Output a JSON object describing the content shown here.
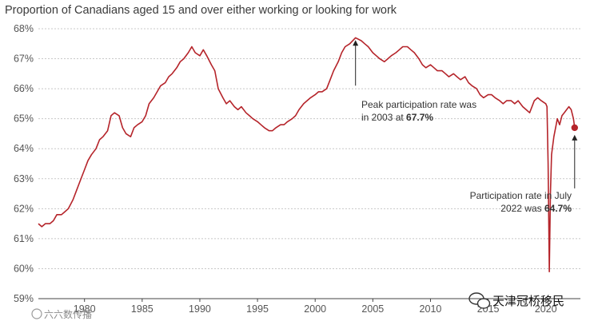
{
  "chart_data": {
    "type": "line",
    "title": "Proportion of Canadians aged 15 and over either working or looking for work",
    "ylim": [
      59,
      68
    ],
    "xlim": [
      1976,
      2023
    ],
    "y_ticks": [
      "59%",
      "60%",
      "61%",
      "62%",
      "63%",
      "64%",
      "65%",
      "66%",
      "67%",
      "68%"
    ],
    "y_tick_values": [
      59,
      60,
      61,
      62,
      63,
      64,
      65,
      66,
      67,
      68
    ],
    "x_ticks": [
      "1980",
      "1985",
      "1990",
      "1995",
      "2000",
      "2005",
      "2010",
      "2015",
      "2020"
    ],
    "x_tick_values": [
      1980,
      1985,
      1990,
      1995,
      2000,
      2005,
      2010,
      2015,
      2020
    ],
    "grid": "horizontal dotted",
    "line_color": "#b5242a",
    "series": [
      {
        "values": [
          [
            1976.0,
            61.5
          ],
          [
            1976.3,
            61.4
          ],
          [
            1976.6,
            61.5
          ],
          [
            1977.0,
            61.5
          ],
          [
            1977.3,
            61.6
          ],
          [
            1977.6,
            61.8
          ],
          [
            1978.0,
            61.8
          ],
          [
            1978.3,
            61.9
          ],
          [
            1978.6,
            62.0
          ],
          [
            1979.0,
            62.3
          ],
          [
            1979.3,
            62.6
          ],
          [
            1979.6,
            62.9
          ],
          [
            1980.0,
            63.3
          ],
          [
            1980.3,
            63.6
          ],
          [
            1980.6,
            63.8
          ],
          [
            1981.0,
            64.0
          ],
          [
            1981.3,
            64.3
          ],
          [
            1981.6,
            64.4
          ],
          [
            1982.0,
            64.6
          ],
          [
            1982.3,
            65.1
          ],
          [
            1982.6,
            65.2
          ],
          [
            1983.0,
            65.1
          ],
          [
            1983.3,
            64.7
          ],
          [
            1983.6,
            64.5
          ],
          [
            1984.0,
            64.4
          ],
          [
            1984.3,
            64.7
          ],
          [
            1984.6,
            64.8
          ],
          [
            1985.0,
            64.9
          ],
          [
            1985.3,
            65.1
          ],
          [
            1985.6,
            65.5
          ],
          [
            1986.0,
            65.7
          ],
          [
            1986.3,
            65.9
          ],
          [
            1986.6,
            66.1
          ],
          [
            1987.0,
            66.2
          ],
          [
            1987.3,
            66.4
          ],
          [
            1987.6,
            66.5
          ],
          [
            1988.0,
            66.7
          ],
          [
            1988.3,
            66.9
          ],
          [
            1988.6,
            67.0
          ],
          [
            1989.0,
            67.2
          ],
          [
            1989.3,
            67.4
          ],
          [
            1989.6,
            67.2
          ],
          [
            1990.0,
            67.1
          ],
          [
            1990.3,
            67.3
          ],
          [
            1990.6,
            67.1
          ],
          [
            1991.0,
            66.8
          ],
          [
            1991.3,
            66.6
          ],
          [
            1991.6,
            66.0
          ],
          [
            1992.0,
            65.7
          ],
          [
            1992.3,
            65.5
          ],
          [
            1992.6,
            65.6
          ],
          [
            1993.0,
            65.4
          ],
          [
            1993.3,
            65.3
          ],
          [
            1993.6,
            65.4
          ],
          [
            1994.0,
            65.2
          ],
          [
            1994.3,
            65.1
          ],
          [
            1994.6,
            65.0
          ],
          [
            1995.0,
            64.9
          ],
          [
            1995.3,
            64.8
          ],
          [
            1995.6,
            64.7
          ],
          [
            1996.0,
            64.6
          ],
          [
            1996.3,
            64.6
          ],
          [
            1996.6,
            64.7
          ],
          [
            1997.0,
            64.8
          ],
          [
            1997.3,
            64.8
          ],
          [
            1997.6,
            64.9
          ],
          [
            1998.0,
            65.0
          ],
          [
            1998.3,
            65.1
          ],
          [
            1998.6,
            65.3
          ],
          [
            1999.0,
            65.5
          ],
          [
            1999.3,
            65.6
          ],
          [
            1999.6,
            65.7
          ],
          [
            2000.0,
            65.8
          ],
          [
            2000.3,
            65.9
          ],
          [
            2000.6,
            65.9
          ],
          [
            2001.0,
            66.0
          ],
          [
            2001.3,
            66.3
          ],
          [
            2001.6,
            66.6
          ],
          [
            2002.0,
            66.9
          ],
          [
            2002.3,
            67.2
          ],
          [
            2002.6,
            67.4
          ],
          [
            2003.0,
            67.5
          ],
          [
            2003.5,
            67.7
          ],
          [
            2004.0,
            67.6
          ],
          [
            2004.3,
            67.5
          ],
          [
            2004.6,
            67.4
          ],
          [
            2005.0,
            67.2
          ],
          [
            2005.3,
            67.1
          ],
          [
            2005.6,
            67.0
          ],
          [
            2006.0,
            66.9
          ],
          [
            2006.3,
            67.0
          ],
          [
            2006.6,
            67.1
          ],
          [
            2007.0,
            67.2
          ],
          [
            2007.3,
            67.3
          ],
          [
            2007.6,
            67.4
          ],
          [
            2008.0,
            67.4
          ],
          [
            2008.3,
            67.3
          ],
          [
            2008.6,
            67.2
          ],
          [
            2009.0,
            67.0
          ],
          [
            2009.3,
            66.8
          ],
          [
            2009.6,
            66.7
          ],
          [
            2010.0,
            66.8
          ],
          [
            2010.3,
            66.7
          ],
          [
            2010.6,
            66.6
          ],
          [
            2011.0,
            66.6
          ],
          [
            2011.3,
            66.5
          ],
          [
            2011.6,
            66.4
          ],
          [
            2012.0,
            66.5
          ],
          [
            2012.3,
            66.4
          ],
          [
            2012.6,
            66.3
          ],
          [
            2013.0,
            66.4
          ],
          [
            2013.3,
            66.2
          ],
          [
            2013.6,
            66.1
          ],
          [
            2014.0,
            66.0
          ],
          [
            2014.3,
            65.8
          ],
          [
            2014.6,
            65.7
          ],
          [
            2015.0,
            65.8
          ],
          [
            2015.3,
            65.8
          ],
          [
            2015.6,
            65.7
          ],
          [
            2016.0,
            65.6
          ],
          [
            2016.3,
            65.5
          ],
          [
            2016.6,
            65.6
          ],
          [
            2017.0,
            65.6
          ],
          [
            2017.3,
            65.5
          ],
          [
            2017.6,
            65.6
          ],
          [
            2018.0,
            65.4
          ],
          [
            2018.3,
            65.3
          ],
          [
            2018.6,
            65.2
          ],
          [
            2019.0,
            65.6
          ],
          [
            2019.3,
            65.7
          ],
          [
            2019.6,
            65.6
          ],
          [
            2020.0,
            65.5
          ],
          [
            2020.1,
            65.4
          ],
          [
            2020.2,
            63.5
          ],
          [
            2020.3,
            59.9
          ],
          [
            2020.4,
            62.5
          ],
          [
            2020.5,
            63.8
          ],
          [
            2020.7,
            64.4
          ],
          [
            2020.9,
            64.8
          ],
          [
            2021.0,
            65.0
          ],
          [
            2021.2,
            64.8
          ],
          [
            2021.4,
            65.1
          ],
          [
            2021.6,
            65.2
          ],
          [
            2021.8,
            65.3
          ],
          [
            2022.0,
            65.4
          ],
          [
            2022.2,
            65.3
          ],
          [
            2022.4,
            65.0
          ],
          [
            2022.5,
            64.7
          ]
        ]
      }
    ],
    "annotations": [
      {
        "x": 2003.5,
        "y": 67.7,
        "line1": "Peak participation rate was",
        "line2_prefix": "in 2003 at ",
        "line2_bold": "67.7%"
      },
      {
        "x": 2022.5,
        "y": 64.7,
        "line1": "Participation rate in July",
        "line2_prefix": "2022 was ",
        "line2_bold": "64.7%"
      }
    ]
  },
  "watermarks": {
    "left": "六六数传播",
    "right": "天津冠桥移民"
  }
}
